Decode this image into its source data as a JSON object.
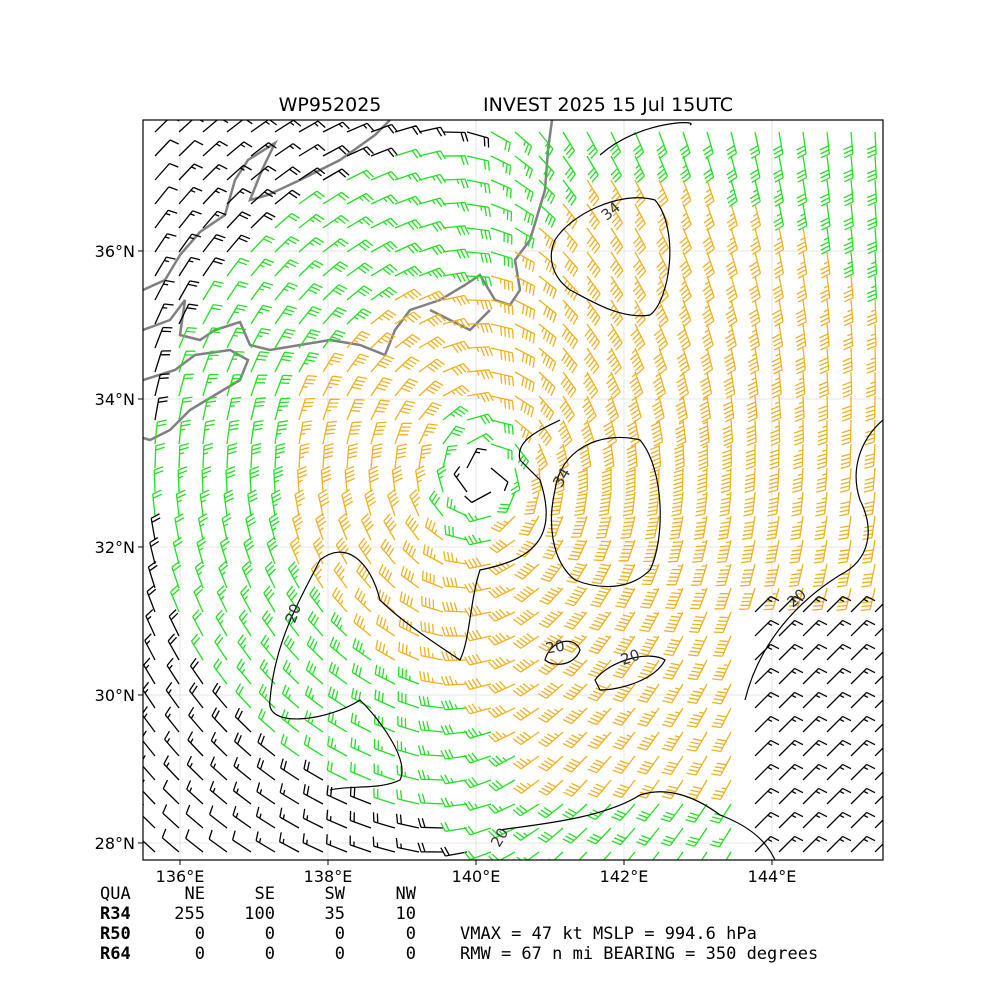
{
  "map": {
    "title_left": "WP952025",
    "title_right": "INVEST 2025 15 Jul 15UTC",
    "lon_ticks": [
      {
        "value": 136,
        "label": "136°E"
      },
      {
        "value": 138,
        "label": "138°E"
      },
      {
        "value": 140,
        "label": "140°E"
      },
      {
        "value": 142,
        "label": "142°E"
      },
      {
        "value": 144,
        "label": "144°E"
      }
    ],
    "lat_ticks": [
      {
        "value": 36,
        "label": "36°N"
      },
      {
        "value": 34,
        "label": "34°N"
      },
      {
        "value": 32,
        "label": "32°N"
      },
      {
        "value": 30,
        "label": "30°N"
      },
      {
        "value": 28,
        "label": "28°N"
      }
    ],
    "contour_labels": [
      "34",
      "34",
      "20",
      "20",
      "20",
      "20",
      "20"
    ]
  },
  "table": {
    "header": [
      "QUA",
      "NE",
      "SE",
      "SW",
      "NW"
    ],
    "rows": [
      [
        "R34",
        "255",
        "100",
        "35",
        "10"
      ],
      [
        "R50",
        "0",
        "0",
        "0",
        "0"
      ],
      [
        "R64",
        "0",
        "0",
        "0",
        "0"
      ]
    ]
  },
  "info": [
    "VMAX =  47 kt MSLP = 994.6 hPa",
    "RMW =  67 n mi BEARING = 350 degrees"
  ]
}
